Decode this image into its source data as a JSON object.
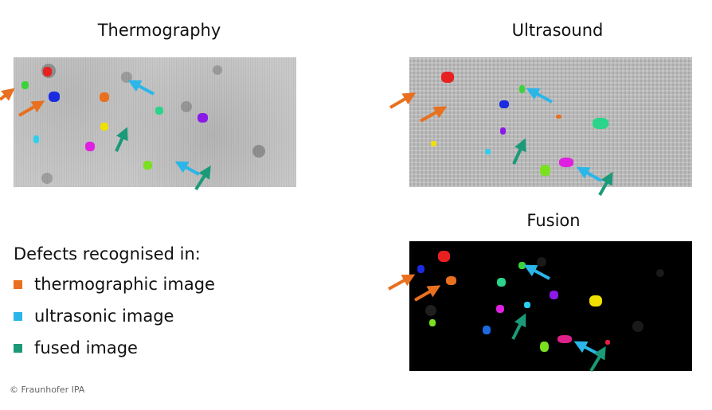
{
  "titles": {
    "thermography": "Thermography",
    "ultrasound": "Ultrasound",
    "fusion": "Fusion"
  },
  "legend": {
    "title": "Defects recognised in:",
    "items": [
      {
        "label": "thermographic image",
        "color": "#e8701e"
      },
      {
        "label": "ultrasonic image",
        "color": "#2ab6e8"
      },
      {
        "label": "fused image",
        "color": "#1a9a78"
      }
    ]
  },
  "copyright": "© Fraunhofer IPA",
  "colors": {
    "thermographic_arrow": "#e8701e",
    "ultrasonic_arrow": "#2ab6e8",
    "fused_arrow": "#1a9a78"
  }
}
